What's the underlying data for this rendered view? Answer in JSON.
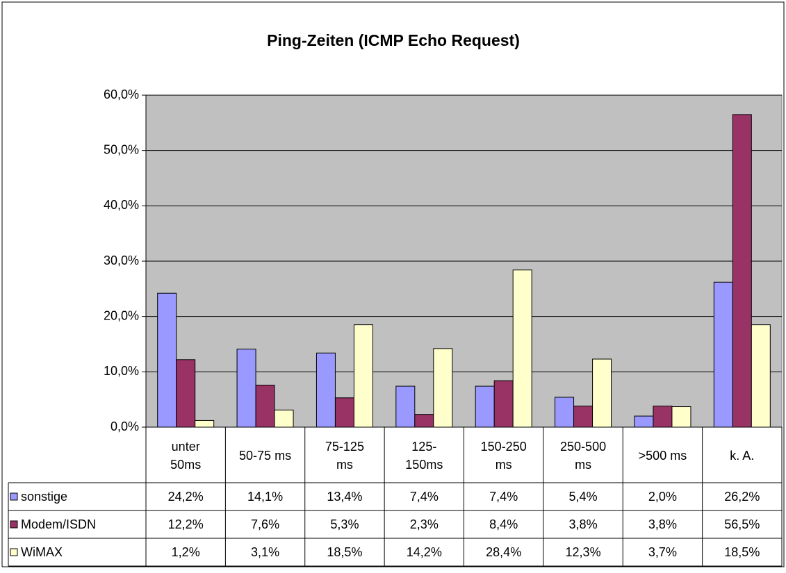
{
  "chart_data": {
    "type": "bar",
    "title": "Ping-Zeiten (ICMP Echo Request)",
    "categories": [
      "unter 50ms",
      "50-75 ms",
      "75-125 ms",
      "125-150ms",
      "150-250 ms",
      "250-500 ms",
      ">500 ms",
      "k. A."
    ],
    "series": [
      {
        "name": "sonstige",
        "color": "#9999ff",
        "values": [
          24.2,
          14.1,
          13.4,
          7.4,
          7.4,
          5.4,
          2.0,
          26.2
        ],
        "value_labels": [
          "24,2%",
          "14,1%",
          "13,4%",
          "7,4%",
          "7,4%",
          "5,4%",
          "2,0%",
          "26,2%"
        ]
      },
      {
        "name": "Modem/ISDN",
        "color": "#993366",
        "values": [
          12.2,
          7.6,
          5.3,
          2.3,
          8.4,
          3.8,
          3.8,
          56.5
        ],
        "value_labels": [
          "12,2%",
          "7,6%",
          "5,3%",
          "2,3%",
          "8,4%",
          "3,8%",
          "3,8%",
          "56,5%"
        ]
      },
      {
        "name": "WiMAX",
        "color": "#ffffcc",
        "values": [
          1.2,
          3.1,
          18.5,
          14.2,
          28.4,
          12.3,
          3.7,
          18.5
        ],
        "value_labels": [
          "1,2%",
          "3,1%",
          "18,5%",
          "14,2%",
          "28,4%",
          "12,3%",
          "3,7%",
          "18,5%"
        ]
      }
    ],
    "ylim": [
      0,
      60
    ],
    "yticks": [
      {
        "value": 0,
        "label": "0,0%"
      },
      {
        "value": 10,
        "label": "10,0%"
      },
      {
        "value": 20,
        "label": "20,0%"
      },
      {
        "value": 30,
        "label": "30,0%"
      },
      {
        "value": 40,
        "label": "40,0%"
      },
      {
        "value": 50,
        "label": "50,0%"
      },
      {
        "value": 60,
        "label": "60,0%"
      }
    ],
    "grid": true
  }
}
